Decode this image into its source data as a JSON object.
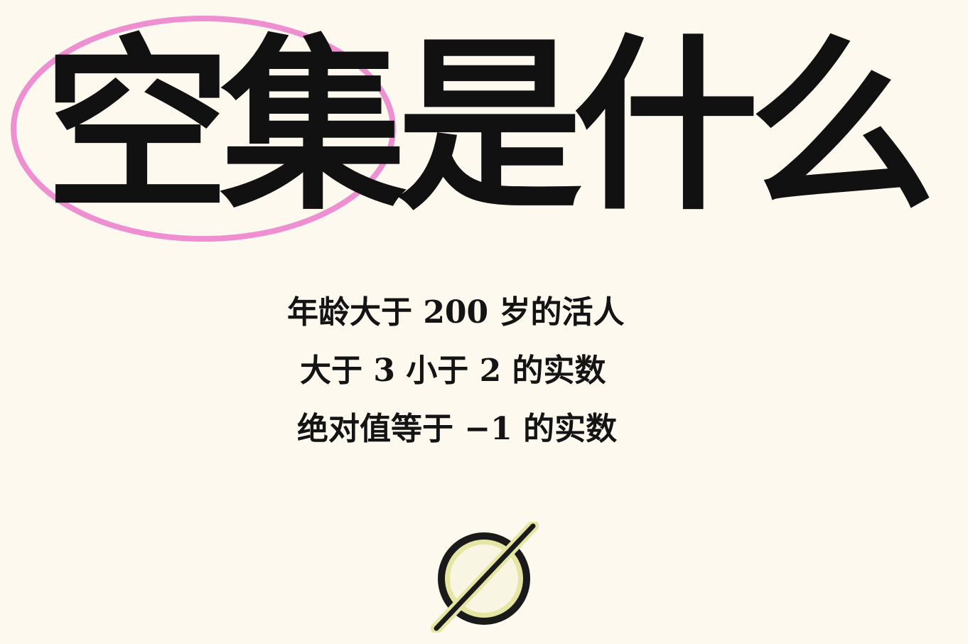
{
  "title": {
    "text": "空集是什么",
    "highlighted_part": "空集",
    "highlight_color": "#ee8fd2"
  },
  "examples": [
    "年龄大于 200 岁的活人",
    "大于 3 小于 2 的实数",
    "绝对值等于 −1 的实数"
  ],
  "symbol": {
    "name": "empty-set-icon",
    "fill_color": "#e5e6a3",
    "stroke_color": "#1a1a1a"
  }
}
